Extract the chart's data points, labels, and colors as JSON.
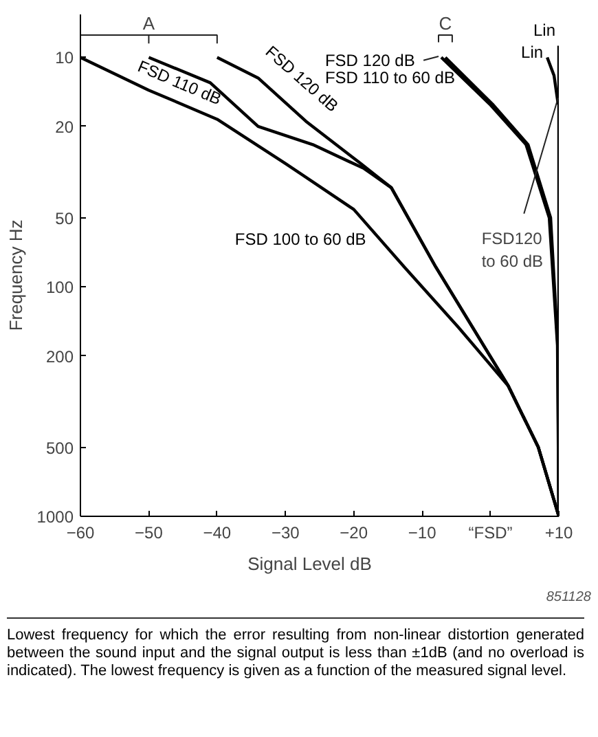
{
  "chart_data": {
    "type": "line",
    "xlabel": "Signal Level     dB",
    "ylabel": "Frequency     Hz",
    "log": "y",
    "grid": false,
    "marker": "none",
    "line_style": "solid",
    "xlim": [
      -60,
      10
    ],
    "xticks": [
      -60,
      -50,
      -40,
      -30,
      -20,
      -10,
      {
        "value": 0,
        "label": "“FSD”"
      },
      {
        "value": 10,
        "label": "+10"
      }
    ],
    "ylim": [
      1000,
      6.5
    ],
    "yticks": [
      10,
      20,
      50,
      100,
      200,
      500,
      1000
    ],
    "series": [
      {
        "name": "FSD 100 to 60 dB",
        "color": "#000000",
        "x": [
          -60,
          -50,
          -40,
          -30,
          -20,
          -12.6,
          -4.7,
          2.6,
          7,
          10
        ],
        "values": [
          10,
          13.9,
          18.6,
          29,
          46,
          82,
          150,
          270,
          500,
          1000
        ]
      },
      {
        "name": "FSD 110 dB",
        "color": "#000000",
        "x": [
          -50,
          -41,
          -34,
          -26,
          -18.5,
          -14.5,
          -8,
          2.6,
          7,
          10
        ],
        "values": [
          10,
          12.9,
          20,
          24,
          30.5,
          37,
          82,
          270,
          500,
          1000
        ]
      },
      {
        "name": "FSD 120 dB",
        "color": "#000000",
        "x": [
          -40,
          -34,
          -27,
          -19,
          -14.5,
          -8,
          2.6,
          7,
          10
        ],
        "values": [
          10,
          12.3,
          19,
          29,
          37,
          82,
          270,
          500,
          1000
        ]
      },
      {
        "name": "FSD 120 dB",
        "color": "#000000",
        "x": [
          -7.2,
          -0.1,
          5.2,
          8.6,
          9.8,
          10
        ],
        "values": [
          10,
          16,
          24,
          50,
          180,
          1000
        ]
      },
      {
        "name": "FSD 110 to 60 dB",
        "color": "#000000",
        "x": [
          -6.6,
          0.3,
          5.5,
          8.8,
          9.85,
          10
        ],
        "values": [
          10,
          16,
          24,
          50,
          180,
          1000
        ]
      },
      {
        "name": "Lin",
        "color": "#000000",
        "x": [
          10,
          10,
          10
        ],
        "values": [
          8.9,
          100,
          1000
        ]
      },
      {
        "name": "Lin",
        "color": "#000000",
        "x": [
          8.3,
          9.3,
          9.9
        ],
        "values": [
          10,
          12,
          16
        ]
      }
    ],
    "annotations": [
      "A",
      "C",
      {
        "text": "FSD120\nto 60 dB",
        "x": 9.9,
        "y": 15
      },
      "851128",
      "Lowest frequency for which the error resulting from non-linear distortion generated between the sound input and the signal output is less than ±1dB (and no overload is indicated). The lowest frequency is given as a function of the measured signal level."
    ]
  }
}
